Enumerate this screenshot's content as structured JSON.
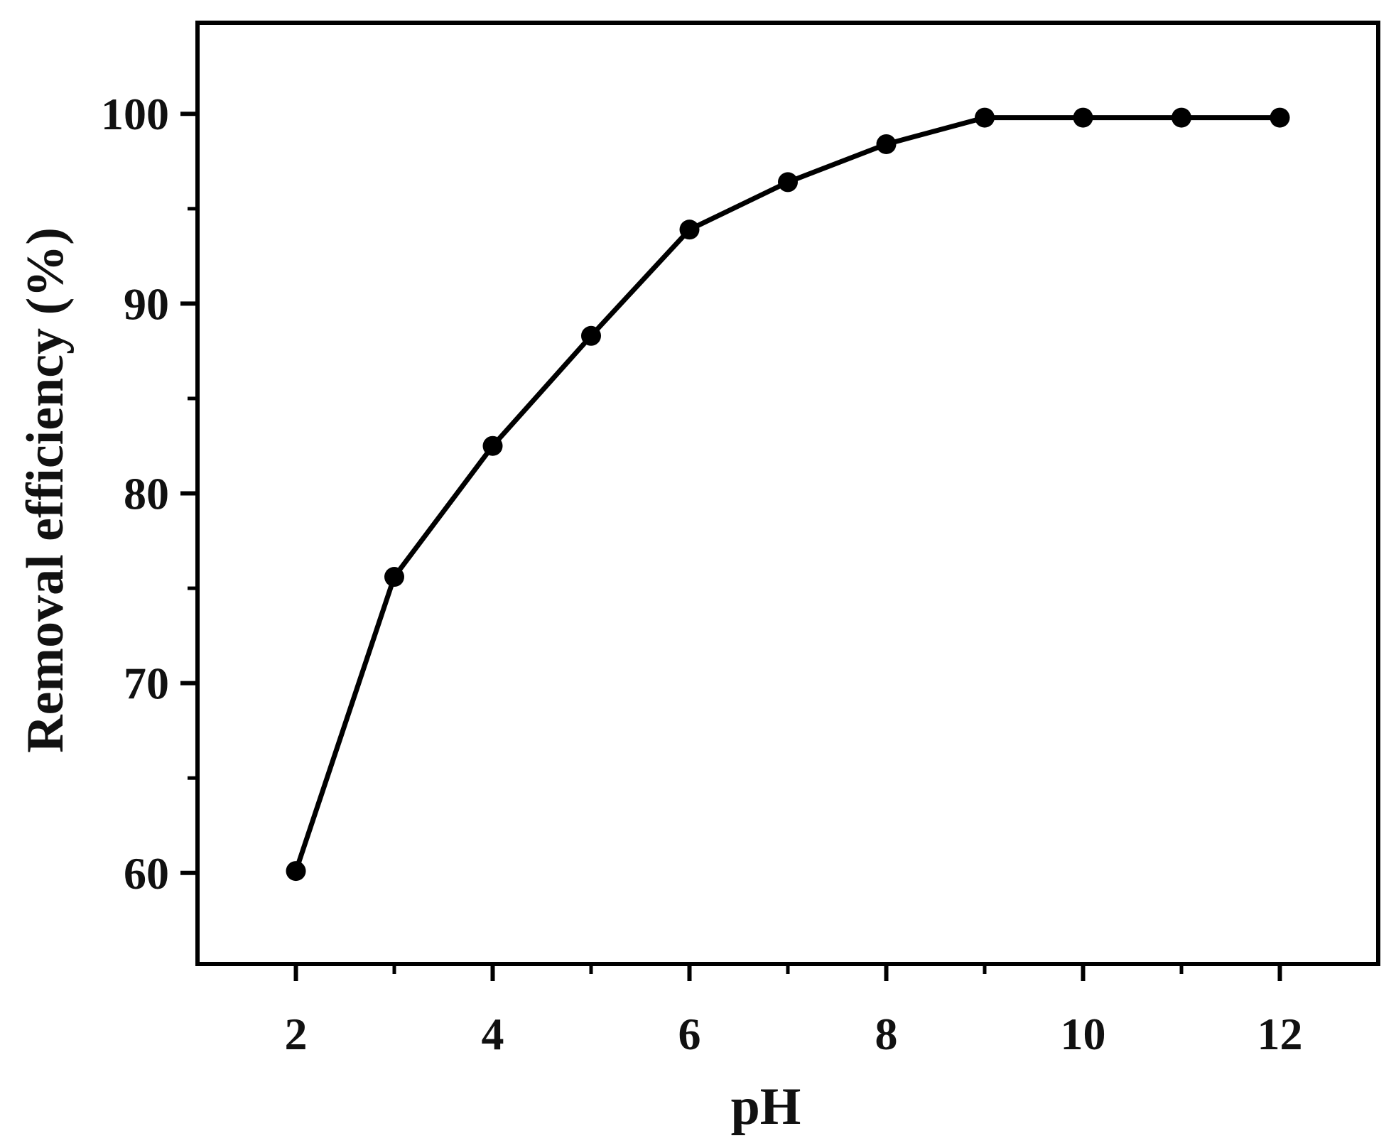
{
  "chart_data": {
    "type": "line",
    "title": "",
    "xlabel": "pH",
    "ylabel": "Removal efficiency (%)",
    "xlim": [
      1,
      13
    ],
    "ylim": [
      55.2,
      104.8
    ],
    "x_ticks": [
      2,
      4,
      6,
      8,
      10,
      12
    ],
    "y_ticks": [
      60,
      70,
      80,
      90,
      100
    ],
    "x_minor_ticks": [
      3,
      5,
      7,
      9,
      11
    ],
    "y_minor_ticks": [
      65,
      75,
      85,
      95
    ],
    "grid": false,
    "series": [
      {
        "x": [
          2,
          3,
          4,
          5,
          6,
          7,
          8,
          9,
          10,
          11,
          12
        ],
        "values": [
          60.1,
          75.6,
          82.5,
          88.3,
          93.9,
          96.4,
          98.4,
          99.8,
          99.8,
          99.8,
          99.8
        ],
        "marker": "circle",
        "color": "#000000"
      }
    ]
  }
}
